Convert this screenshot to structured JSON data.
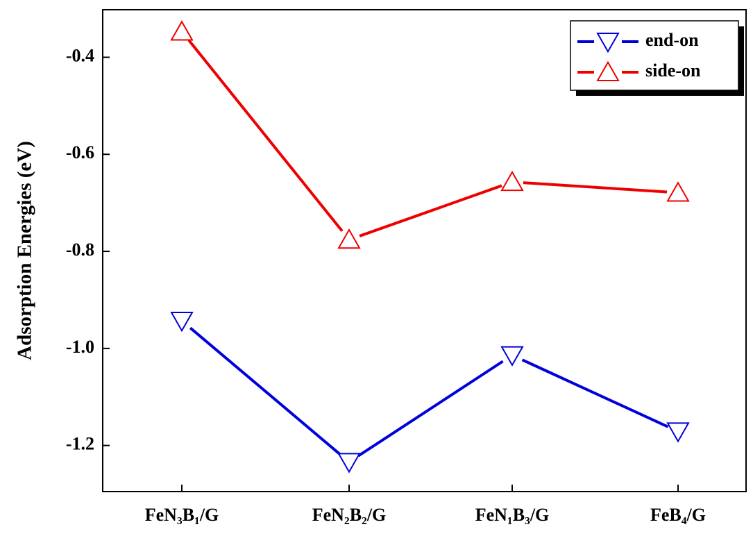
{
  "chart_data": {
    "type": "line",
    "y_label": "Adsorption Energies (eV)",
    "categories": [
      "FeN₃B₁/G",
      "FeN₂B₂/G",
      "FeN₁B₃/G",
      "FeB₄/G"
    ],
    "series": [
      {
        "name": "end-on",
        "color": "#0000dd",
        "marker": "triangle-down",
        "values": [
          -0.943,
          -1.234,
          -1.014,
          -1.171
        ]
      },
      {
        "name": "side-on",
        "color": "#ee0000",
        "marker": "triangle-up",
        "values": [
          -0.347,
          -0.776,
          -0.657,
          -0.679
        ]
      }
    ],
    "ylim": [
      -1.295,
      -0.302
    ],
    "yticks": [
      -0.4,
      -0.6,
      -0.8,
      {
        "value": -1,
        "label": "-1.0"
      },
      -1.2
    ],
    "legend": "upper right"
  }
}
